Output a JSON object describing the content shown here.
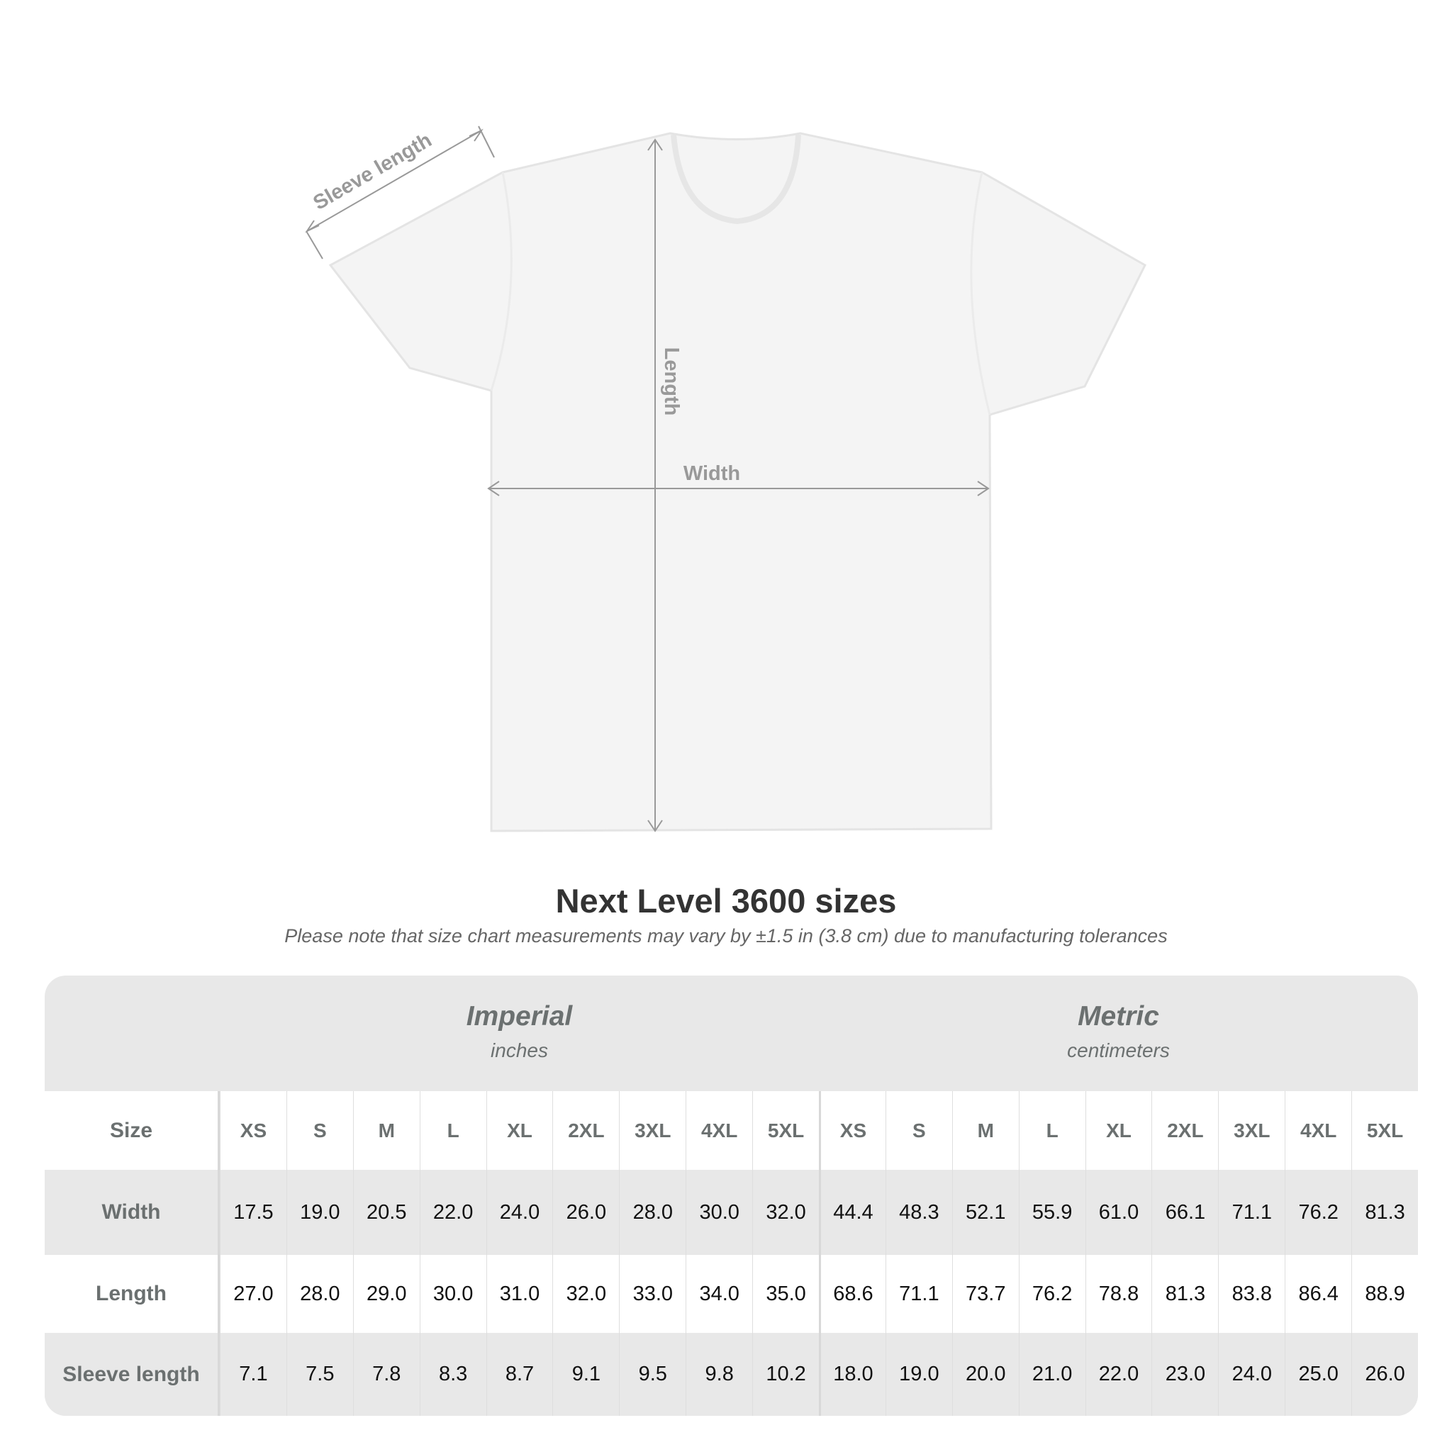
{
  "diagram": {
    "sleeve_label": "Sleeve length",
    "length_label": "Length",
    "width_label": "Width"
  },
  "title": "Next Level 3600 sizes",
  "note": "Please note that size chart measurements may vary by ±1.5 in (3.8 cm) due to manufacturing tolerances",
  "table": {
    "imperial": {
      "title": "Imperial",
      "unit": "inches"
    },
    "metric": {
      "title": "Metric",
      "unit": "centimeters"
    },
    "size_label": "Size",
    "sizes": [
      "XS",
      "S",
      "M",
      "L",
      "XL",
      "2XL",
      "3XL",
      "4XL",
      "5XL"
    ],
    "rows": [
      {
        "label": "Width",
        "imperial": [
          "17.5",
          "19.0",
          "20.5",
          "22.0",
          "24.0",
          "26.0",
          "28.0",
          "30.0",
          "32.0"
        ],
        "metric": [
          "44.4",
          "48.3",
          "52.1",
          "55.9",
          "61.0",
          "66.1",
          "71.1",
          "76.2",
          "81.3"
        ]
      },
      {
        "label": "Length",
        "imperial": [
          "27.0",
          "28.0",
          "29.0",
          "30.0",
          "31.0",
          "32.0",
          "33.0",
          "34.0",
          "35.0"
        ],
        "metric": [
          "68.6",
          "71.1",
          "73.7",
          "76.2",
          "78.8",
          "81.3",
          "83.8",
          "86.4",
          "88.9"
        ]
      },
      {
        "label": "Sleeve length",
        "imperial": [
          "7.1",
          "7.5",
          "7.8",
          "8.3",
          "8.7",
          "9.1",
          "9.5",
          "9.8",
          "10.2"
        ],
        "metric": [
          "18.0",
          "19.0",
          "20.0",
          "21.0",
          "22.0",
          "23.0",
          "24.0",
          "25.0",
          "26.0"
        ]
      }
    ]
  }
}
